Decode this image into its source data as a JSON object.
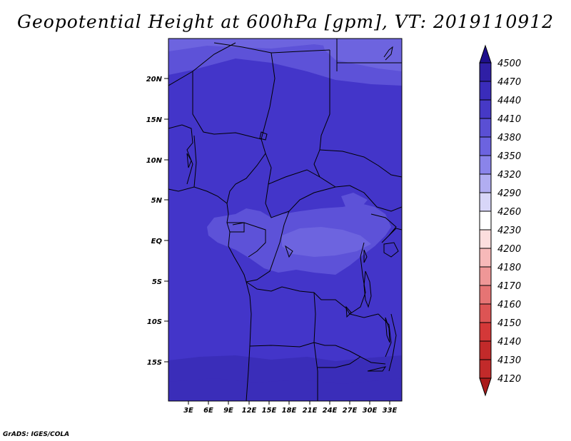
{
  "title": "Geopotential Height at 600hPa [gpm], VT: 2019110912",
  "credit": "GrADS: IGES/COLA",
  "map": {
    "lat_labels": [
      "20N",
      "15N",
      "10N",
      "5N",
      "EQ",
      "5S",
      "10S",
      "15S"
    ],
    "lon_labels": [
      "3E",
      "6E",
      "9E",
      "12E",
      "15E",
      "18E",
      "21E",
      "24E",
      "27E",
      "30E",
      "33E"
    ]
  },
  "colorbar": {
    "levels": [
      "4500",
      "4470",
      "4440",
      "4410",
      "4380",
      "4350",
      "4320",
      "4290",
      "4260",
      "4230",
      "4200",
      "4180",
      "4170",
      "4160",
      "4150",
      "4140",
      "4130",
      "4120"
    ],
    "colors": [
      "#1e0e8c",
      "#2f1fa5",
      "#3a2cba",
      "#4639c6",
      "#5a4fd4",
      "#6c63e0",
      "#8a84ea",
      "#b1adf1",
      "#d8d6f8",
      "#ffffff",
      "#fcdede",
      "#f7b9b9",
      "#ef9797",
      "#e67474",
      "#dd5454",
      "#d43838",
      "#c22a2a",
      "#a91b1b"
    ]
  },
  "field_colors": {
    "base": "#4335c9",
    "high_edge": "#3a2db9",
    "light": "#5d52d8",
    "lighter": "#6d64df",
    "lightest": "#7e77e6"
  }
}
